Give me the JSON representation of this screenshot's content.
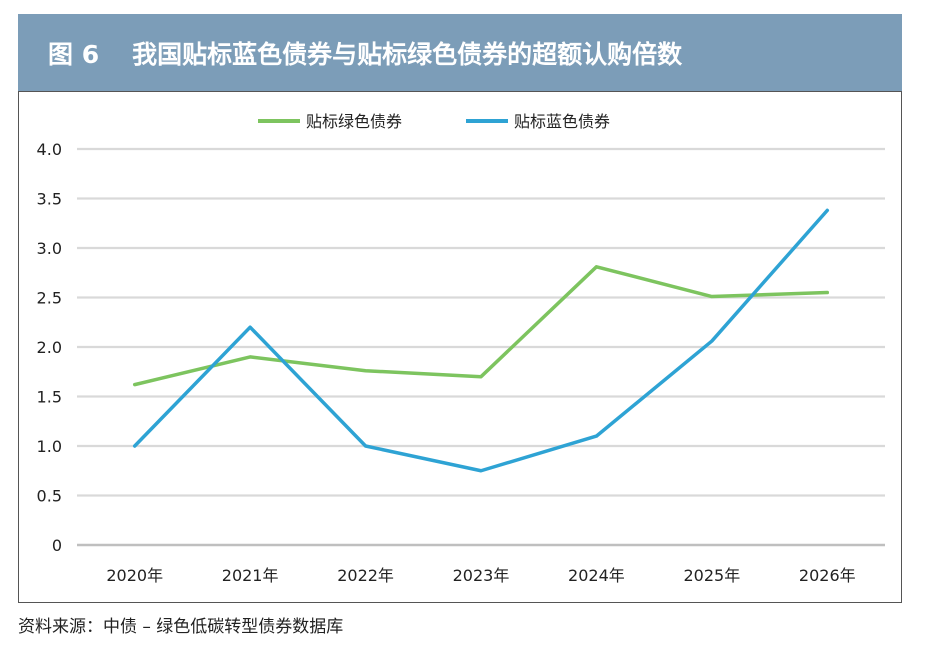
{
  "header": {
    "figure_label": "图 6",
    "title": "我国贴标蓝色债券与贴标绿色债券的超额认购倍数"
  },
  "source": "资料来源：中债 – 绿色低碳转型债券数据库",
  "colors": {
    "title_bar": "#7c9db8",
    "green_series": "#7dc45f",
    "blue_series": "#2ea3d4",
    "grid": "#d9d9d9",
    "axis": "#bfbfbf"
  },
  "chart_data": {
    "type": "line",
    "title": "我国贴标蓝色债券与贴标绿色债券的超额认购倍数",
    "xlabel": "",
    "ylabel": "",
    "categories": [
      "2020年",
      "2021年",
      "2022年",
      "2023年",
      "2024年",
      "2025年",
      "2026年"
    ],
    "ylim": [
      0,
      4.0
    ],
    "yticks": [
      "0",
      "0.5",
      "1.0",
      "1.5",
      "2.0",
      "2.5",
      "3.0",
      "3.5",
      "4.0"
    ],
    "grid": true,
    "legend_position": "top-center",
    "series": [
      {
        "name": "贴标绿色债券",
        "color": "#7dc45f",
        "values": [
          1.62,
          1.9,
          1.76,
          1.7,
          2.81,
          2.51,
          2.55
        ]
      },
      {
        "name": "贴标蓝色债券",
        "color": "#2ea3d4",
        "values": [
          1.0,
          2.2,
          1.0,
          0.75,
          1.1,
          2.06,
          3.38
        ]
      }
    ]
  }
}
